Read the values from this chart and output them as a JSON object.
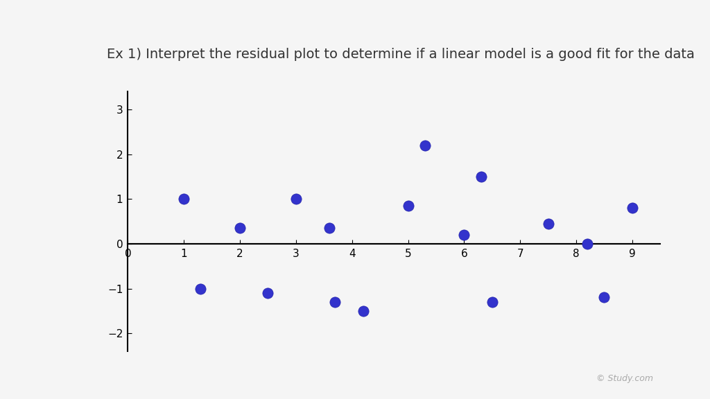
{
  "title": "Ex 1) Interpret the residual plot to determine if a linear model is a good fit for the data",
  "title_fontsize": 14,
  "background_color": "#f5f5f5",
  "dot_color": "#3333cc",
  "dot_edge_color": "#2222aa",
  "xlim": [
    0,
    9.5
  ],
  "ylim": [
    -2.4,
    3.4
  ],
  "xticks": [
    0,
    1,
    2,
    3,
    4,
    5,
    6,
    7,
    8,
    9
  ],
  "yticks": [
    -2,
    -1,
    0,
    1,
    2,
    3
  ],
  "x_points": [
    1.0,
    1.3,
    2.0,
    2.5,
    3.0,
    3.6,
    3.7,
    4.2,
    5.0,
    5.3,
    6.0,
    6.3,
    6.5,
    7.5,
    8.2,
    8.5,
    9.0
  ],
  "y_points": [
    1.0,
    -1.0,
    0.35,
    -1.1,
    1.0,
    0.35,
    -1.3,
    -1.5,
    0.85,
    2.2,
    0.2,
    1.5,
    -1.3,
    0.45,
    0.0,
    -1.2,
    0.8
  ],
  "marker_size": 120,
  "axis_linewidth": 1.5,
  "zero_line_color": "#000000",
  "spine_color": "#000000"
}
